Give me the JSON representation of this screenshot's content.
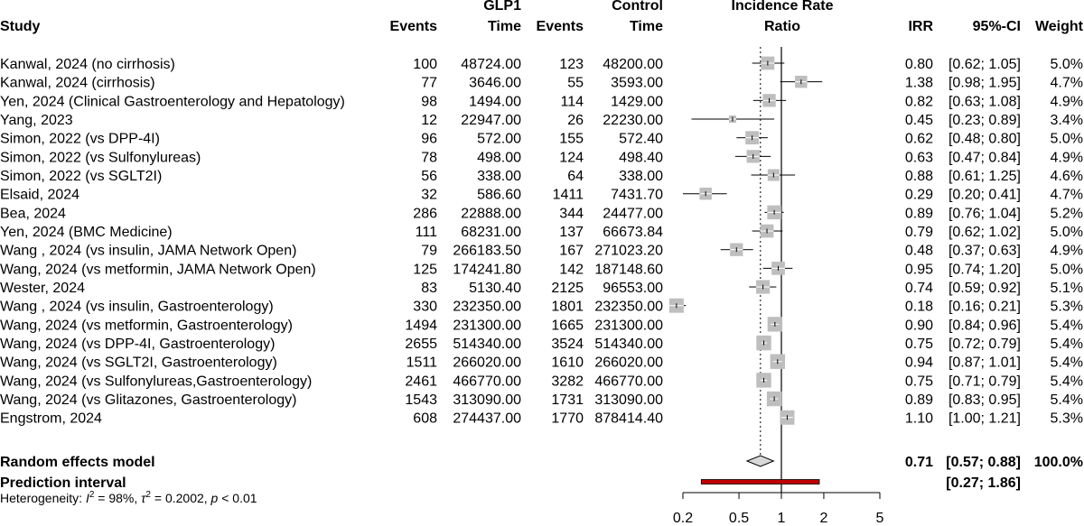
{
  "headers": {
    "study": "Study",
    "glp1_group": "GLP1",
    "control_group": "Control",
    "events": "Events",
    "time": "Time",
    "irr_plot_line1": "Incidence Rate",
    "irr_plot_line2": "Ratio",
    "irr": "IRR",
    "ci": "95%-CI",
    "weight": "Weight"
  },
  "chart_data": {
    "type": "forest",
    "title": "Incidence Rate Ratio",
    "scale": "log",
    "xlim": [
      0.2,
      5
    ],
    "ticks": [
      0.2,
      0.5,
      1,
      2,
      5
    ],
    "tick_labels": [
      "0.2",
      "0.5",
      "1",
      "2",
      "5"
    ],
    "null_line": 1,
    "pooled_reference": 0.71,
    "studies": [
      {
        "study": "Kanwal, 2024 (no cirrhosis)",
        "e1": "100",
        "t1": "48724.00",
        "e2": "123",
        "t2": "48200.00",
        "irr": 0.8,
        "lo": 0.62,
        "hi": 1.05,
        "irr_text": "0.80",
        "ci_text": "[0.62; 1.05]",
        "weight": "5.0%",
        "w": 5.0
      },
      {
        "study": "Kanwal, 2024 (cirrhosis)",
        "e1": "77",
        "t1": "3646.00",
        "e2": "55",
        "t2": "3593.00",
        "irr": 1.38,
        "lo": 0.98,
        "hi": 1.95,
        "irr_text": "1.38",
        "ci_text": "[0.98; 1.95]",
        "weight": "4.7%",
        "w": 4.7
      },
      {
        "study": "Yen, 2024 (Clinical Gastroenterology and Hepatology)",
        "e1": "98",
        "t1": "1494.00",
        "e2": "114",
        "t2": "1429.00",
        "irr": 0.82,
        "lo": 0.63,
        "hi": 1.08,
        "irr_text": "0.82",
        "ci_text": "[0.63; 1.08]",
        "weight": "4.9%",
        "w": 4.9
      },
      {
        "study": "Yang, 2023",
        "e1": "12",
        "t1": "22947.00",
        "e2": "26",
        "t2": "22230.00",
        "irr": 0.45,
        "lo": 0.23,
        "hi": 0.89,
        "irr_text": "0.45",
        "ci_text": "[0.23; 0.89]",
        "weight": "3.4%",
        "w": 3.4
      },
      {
        "study": "Simon, 2022 (vs DPP-4I)",
        "e1": "96",
        "t1": "572.00",
        "e2": "155",
        "t2": "572.40",
        "irr": 0.62,
        "lo": 0.48,
        "hi": 0.8,
        "irr_text": "0.62",
        "ci_text": "[0.48; 0.80]",
        "weight": "5.0%",
        "w": 5.0
      },
      {
        "study": "Simon, 2022 (vs Sulfonylureas)",
        "e1": "78",
        "t1": "498.00",
        "e2": "124",
        "t2": "498.40",
        "irr": 0.63,
        "lo": 0.47,
        "hi": 0.84,
        "irr_text": "0.63",
        "ci_text": "[0.47; 0.84]",
        "weight": "4.9%",
        "w": 4.9
      },
      {
        "study": "Simon, 2022 (vs SGLT2I)",
        "e1": "56",
        "t1": "338.00",
        "e2": "64",
        "t2": "338.00",
        "irr": 0.88,
        "lo": 0.61,
        "hi": 1.25,
        "irr_text": "0.88",
        "ci_text": "[0.61; 1.25]",
        "weight": "4.6%",
        "w": 4.6
      },
      {
        "study": "Elsaid, 2024",
        "e1": "32",
        "t1": "586.60",
        "e2": "1411",
        "t2": "7431.70",
        "irr": 0.29,
        "lo": 0.2,
        "hi": 0.41,
        "irr_text": "0.29",
        "ci_text": "[0.20; 0.41]",
        "weight": "4.7%",
        "w": 4.7
      },
      {
        "study": "Bea, 2024",
        "e1": "286",
        "t1": "22888.00",
        "e2": "344",
        "t2": "24477.00",
        "irr": 0.89,
        "lo": 0.76,
        "hi": 1.04,
        "irr_text": "0.89",
        "ci_text": "[0.76; 1.04]",
        "weight": "5.2%",
        "w": 5.2
      },
      {
        "study": "Yen, 2024 (BMC Medicine)",
        "e1": "111",
        "t1": "68231.00",
        "e2": "137",
        "t2": "66673.84",
        "irr": 0.79,
        "lo": 0.62,
        "hi": 1.02,
        "irr_text": "0.79",
        "ci_text": "[0.62; 1.02]",
        "weight": "5.0%",
        "w": 5.0
      },
      {
        "study": "Wang , 2024 (vs insulin, JAMA Network Open)",
        "e1": "79",
        "t1": "266183.50",
        "e2": "167",
        "t2": "271023.20",
        "irr": 0.48,
        "lo": 0.37,
        "hi": 0.63,
        "irr_text": "0.48",
        "ci_text": "[0.37; 0.63]",
        "weight": "4.9%",
        "w": 4.9
      },
      {
        "study": "Wang, 2024 (vs metformin, JAMA Network Open)",
        "e1": "125",
        "t1": "174241.80",
        "e2": "142",
        "t2": "187148.60",
        "irr": 0.95,
        "lo": 0.74,
        "hi": 1.2,
        "irr_text": "0.95",
        "ci_text": "[0.74; 1.20]",
        "weight": "5.0%",
        "w": 5.0
      },
      {
        "study": "Wester, 2024",
        "e1": "83",
        "t1": "5130.40",
        "e2": "2125",
        "t2": "96553.00",
        "irr": 0.74,
        "lo": 0.59,
        "hi": 0.92,
        "irr_text": "0.74",
        "ci_text": "[0.59; 0.92]",
        "weight": "5.1%",
        "w": 5.1
      },
      {
        "study": "Wang , 2024 (vs insulin, Gastroenterology)",
        "e1": "330",
        "t1": "232350.00",
        "e2": "1801",
        "t2": "232350.00",
        "irr": 0.18,
        "lo": 0.16,
        "hi": 0.21,
        "irr_text": "0.18",
        "ci_text": "[0.16; 0.21]",
        "weight": "5.3%",
        "w": 5.3
      },
      {
        "study": "Wang, 2024 (vs metformin, Gastroenterology)",
        "e1": "1494",
        "t1": "231300.00",
        "e2": "1665",
        "t2": "231300.00",
        "irr": 0.9,
        "lo": 0.84,
        "hi": 0.96,
        "irr_text": "0.90",
        "ci_text": "[0.84; 0.96]",
        "weight": "5.4%",
        "w": 5.4
      },
      {
        "study": "Wang, 2024 (vs DPP-4I, Gastroenterology)",
        "e1": "2655",
        "t1": "514340.00",
        "e2": "3524",
        "t2": "514340.00",
        "irr": 0.75,
        "lo": 0.72,
        "hi": 0.79,
        "irr_text": "0.75",
        "ci_text": "[0.72; 0.79]",
        "weight": "5.4%",
        "w": 5.4
      },
      {
        "study": "Wang, 2024 (vs SGLT2I, Gastroenterology)",
        "e1": "1511",
        "t1": "266020.00",
        "e2": "1610",
        "t2": "266020.00",
        "irr": 0.94,
        "lo": 0.87,
        "hi": 1.01,
        "irr_text": "0.94",
        "ci_text": "[0.87; 1.01]",
        "weight": "5.4%",
        "w": 5.4
      },
      {
        "study": "Wang, 2024 (vs Sulfonylureas,Gastroenterology)",
        "e1": "2461",
        "t1": "466770.00",
        "e2": "3282",
        "t2": "466770.00",
        "irr": 0.75,
        "lo": 0.71,
        "hi": 0.79,
        "irr_text": "0.75",
        "ci_text": "[0.71; 0.79]",
        "weight": "5.4%",
        "w": 5.4
      },
      {
        "study": "Wang, 2024 (vs Glitazones, Gastroenterology)",
        "e1": "1543",
        "t1": "313090.00",
        "e2": "1731",
        "t2": "313090.00",
        "irr": 0.89,
        "lo": 0.83,
        "hi": 0.95,
        "irr_text": "0.89",
        "ci_text": "[0.83; 0.95]",
        "weight": "5.4%",
        "w": 5.4
      },
      {
        "study": "Engstrom, 2024",
        "e1": "608",
        "t1": "274437.00",
        "e2": "1770",
        "t2": "878414.40",
        "irr": 1.1,
        "lo": 1.0,
        "hi": 1.21,
        "irr_text": "1.10",
        "ci_text": "[1.00; 1.21]",
        "weight": "5.3%",
        "w": 5.3
      }
    ],
    "random_effects": {
      "label": "Random effects model",
      "irr": 0.71,
      "lo": 0.57,
      "hi": 0.88,
      "irr_text": "0.71",
      "ci_text": "[0.57; 0.88]",
      "weight": "100.0%"
    },
    "prediction_interval": {
      "label": "Prediction interval",
      "lo": 0.27,
      "hi": 1.86,
      "ci_text": "[0.27; 1.86]",
      "color": "#c00000"
    },
    "heterogeneity": {
      "prefix": "Heterogeneity: ",
      "I": "I",
      "I_sup": "2",
      "I_val": " = 98%, ",
      "tau": "τ",
      "tau_sup": "2",
      "tau_val": " = 0.2002, ",
      "p": "p",
      "p_val": " < 0.01"
    },
    "colors": {
      "square": "#bebebe",
      "diamond": "#d9d9d9",
      "prediction": "#c00000",
      "line": "#000000"
    }
  }
}
